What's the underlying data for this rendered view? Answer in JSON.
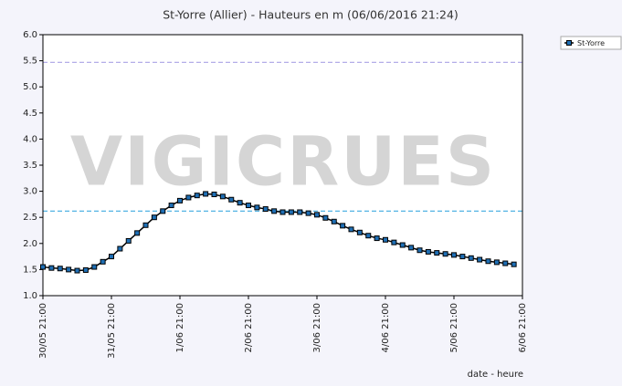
{
  "chart_data": {
    "type": "line",
    "title": "St-Yorre (Allier) - Hauteurs en m (06/06/2016 21:24)",
    "watermark": "VIGICRUES",
    "x_label": "date - heure",
    "x": [
      0,
      3,
      6,
      9,
      12,
      15,
      18,
      21,
      24,
      27,
      30,
      33,
      36,
      39,
      42,
      45,
      48,
      51,
      54,
      57,
      60,
      63,
      66,
      69,
      72,
      75,
      78,
      81,
      84,
      87,
      90,
      93,
      96,
      99,
      102,
      105,
      108,
      111,
      114,
      117,
      120,
      123,
      126,
      129,
      132,
      135,
      138,
      141,
      144,
      147,
      150,
      153,
      156,
      159,
      162,
      165
    ],
    "series": [
      {
        "name": "St-Yorre",
        "color": "#1f6fb5",
        "values": [
          1.55,
          1.53,
          1.52,
          1.5,
          1.48,
          1.49,
          1.55,
          1.65,
          1.75,
          1.9,
          2.05,
          2.2,
          2.35,
          2.5,
          2.62,
          2.73,
          2.82,
          2.88,
          2.92,
          2.95,
          2.94,
          2.9,
          2.84,
          2.78,
          2.73,
          2.69,
          2.66,
          2.62,
          2.6,
          2.6,
          2.6,
          2.58,
          2.55,
          2.49,
          2.42,
          2.34,
          2.27,
          2.21,
          2.15,
          2.1,
          2.07,
          2.02,
          1.97,
          1.92,
          1.87,
          1.84,
          1.82,
          1.8,
          1.78,
          1.75,
          1.72,
          1.69,
          1.66,
          1.64,
          1.62,
          1.6
        ]
      }
    ],
    "thresholds": [
      {
        "value": 5.47,
        "color": "#a9a3e6"
      },
      {
        "value": 2.62,
        "color": "#3fa9e0"
      }
    ],
    "xlim": [
      0,
      168
    ],
    "xticks": [
      {
        "value": 0,
        "label": "30/05 21:00"
      },
      {
        "value": 24,
        "label": "31/05 21:00"
      },
      {
        "value": 48,
        "label": "1/06 21:00"
      },
      {
        "value": 72,
        "label": "2/06 21:00"
      },
      {
        "value": 96,
        "label": "3/06 21:00"
      },
      {
        "value": 120,
        "label": "4/06 21:00"
      },
      {
        "value": 144,
        "label": "5/06 21:00"
      },
      {
        "value": 168,
        "label": "6/06 21:00"
      }
    ],
    "ylim": [
      1,
      6
    ],
    "yticks": [
      {
        "value": 1,
        "label": "1.0"
      },
      1.5,
      {
        "value": 2,
        "label": "2.0"
      },
      2.5,
      {
        "value": 3,
        "label": "3.0"
      },
      3.5,
      {
        "value": 4,
        "label": "4.0"
      },
      4.5,
      {
        "value": 5,
        "label": "5.0"
      },
      5.5,
      {
        "value": 6,
        "label": "6.0"
      }
    ],
    "legend": "top-right"
  }
}
